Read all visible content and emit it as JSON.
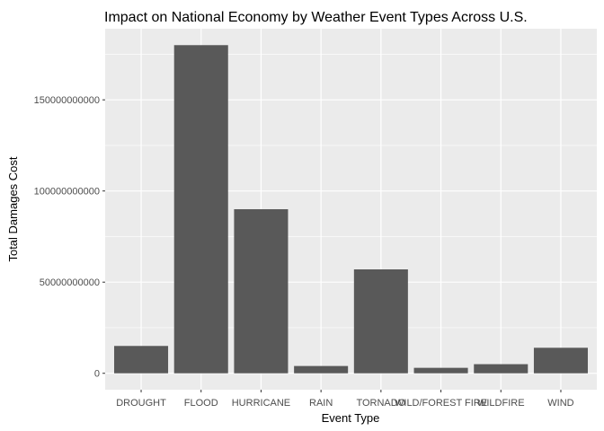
{
  "chart_data": {
    "type": "bar",
    "title": "Impact on National Economy by Weather Event Types Across U.S.",
    "xlabel": "Event Type",
    "ylabel": "Total Damages Cost",
    "categories": [
      "DROUGHT",
      "FLOOD",
      "HURRICANE",
      "RAIN",
      "TORNADO",
      "WILD/FOREST FIRE",
      "WILDFIRE",
      "WIND"
    ],
    "values": [
      15000000000,
      180000000000,
      90000000000,
      4000000000,
      57000000000,
      3000000000,
      5000000000,
      14000000000
    ],
    "yticks": [
      0,
      50000000000,
      100000000000,
      150000000000
    ],
    "ytick_labels": [
      "0",
      "50000000000",
      "100000000000",
      "150000000000"
    ],
    "ylim": [
      -9000000000,
      189000000000
    ],
    "grid": true,
    "colors": {
      "panel": "#ebebeb",
      "grid": "#ffffff",
      "bar": "#595959"
    }
  }
}
